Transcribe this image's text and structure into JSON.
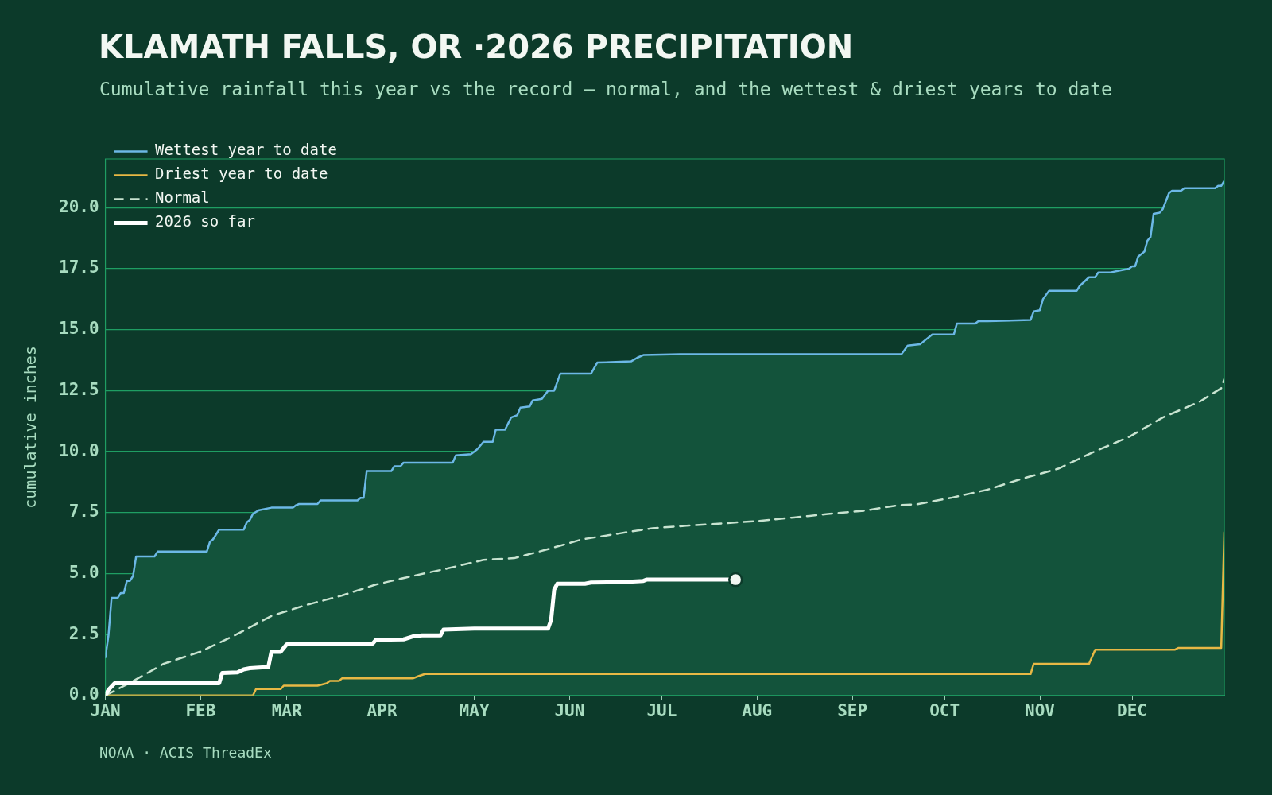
{
  "chart_data": {
    "type": "line",
    "title": "KLAMATH FALLS, OR ·2026 PRECIPITATION",
    "subtitle": "Cumulative rainfall this year vs the record — normal, and the wettest & driest years to date",
    "ylabel": "cumulative inches",
    "xlim": [
      "--01-01",
      "--12-31"
    ],
    "xticks": [
      {
        "value": "--01-01",
        "label": "JAN"
      },
      {
        "value": "--02-01",
        "label": "FEB"
      },
      {
        "value": "--03-01",
        "label": "MAR"
      },
      {
        "value": "--04-01",
        "label": "APR"
      },
      {
        "value": "--05-01",
        "label": "MAY"
      },
      {
        "value": "--06-01",
        "label": "JUN"
      },
      {
        "value": "--07-01",
        "label": "JUL"
      },
      {
        "value": "--08-01",
        "label": "AUG"
      },
      {
        "value": "--09-01",
        "label": "SEP"
      },
      {
        "value": "--10-01",
        "label": "OCT"
      },
      {
        "value": "--11-01",
        "label": "NOV"
      },
      {
        "value": "--12-01",
        "label": "DEC"
      }
    ],
    "ylim": [
      0,
      22
    ],
    "yticks": [
      {
        "value": 0,
        "label": "0.0"
      },
      {
        "value": 2.5,
        "label": "2.5"
      },
      {
        "value": 5,
        "label": "5.0"
      },
      {
        "value": 7.5,
        "label": "7.5"
      },
      {
        "value": 10,
        "label": "10.0"
      },
      {
        "value": 12.5,
        "label": "12.5"
      },
      {
        "value": 15,
        "label": "15.0"
      },
      {
        "value": 17.5,
        "label": "17.5"
      },
      {
        "value": 20,
        "label": "20.0"
      }
    ],
    "grid": "y",
    "legend": "top left",
    "series": [
      {
        "name": "Wettest year to date",
        "type": "area",
        "color": "#6cb8e6",
        "x": [
          "--01-01",
          "--01-02",
          "--01-03",
          "--01-05",
          "--01-06",
          "--01-07",
          "--01-08",
          "--01-09",
          "--01-10",
          "--01-11",
          "--01-17",
          "--01-18",
          "--02-03",
          "--02-04",
          "--02-05",
          "--02-07",
          "--02-15",
          "--02-16",
          "--02-17",
          "--02-18",
          "--02-20",
          "--02-24",
          "--03-03",
          "--03-04",
          "--03-05",
          "--03-11",
          "--03-12",
          "--03-24",
          "--03-25",
          "--03-26",
          "--03-27",
          "--04-04",
          "--04-05",
          "--04-07",
          "--04-08",
          "--04-24",
          "--04-25",
          "--04-30",
          "--05-02",
          "--05-04",
          "--05-07",
          "--05-08",
          "--05-11",
          "--05-13",
          "--05-15",
          "--05-16",
          "--05-19",
          "--05-20",
          "--05-23",
          "--05-25",
          "--05-27",
          "--05-29",
          "--06-08",
          "--06-10",
          "--06-21",
          "--06-23",
          "--06-25",
          "--07-07",
          "--09-17",
          "--09-19",
          "--09-23",
          "--09-27",
          "--10-04",
          "--10-05",
          "--10-11",
          "--10-12",
          "--10-15",
          "--10-29",
          "--10-30",
          "--11-01",
          "--11-02",
          "--11-04",
          "--11-13",
          "--11-14",
          "--11-17",
          "--11-19",
          "--11-20",
          "--11-24",
          "--11-28",
          "--11-30",
          "--12-01",
          "--12-02",
          "--12-03",
          "--12-05",
          "--12-06",
          "--12-07",
          "--12-08",
          "--12-10",
          "--12-11",
          "--12-13",
          "--12-14",
          "--12-17",
          "--12-18",
          "--12-28",
          "--12-29",
          "--12-30",
          "--12-31"
        ],
        "values": [
          1.56,
          2.46,
          4.0,
          4.0,
          4.2,
          4.2,
          4.7,
          4.7,
          4.9,
          5.7,
          5.7,
          5.9,
          5.9,
          6.3,
          6.4,
          6.8,
          6.8,
          7.1,
          7.2,
          7.45,
          7.6,
          7.7,
          7.7,
          7.8,
          7.85,
          7.85,
          8.0,
          8.0,
          8.1,
          8.1,
          9.2,
          9.2,
          9.4,
          9.4,
          9.55,
          9.55,
          9.85,
          9.9,
          10.1,
          10.4,
          10.4,
          10.9,
          10.9,
          11.4,
          11.5,
          11.8,
          11.85,
          12.1,
          12.16,
          12.5,
          12.5,
          13.2,
          13.2,
          13.65,
          13.7,
          13.85,
          13.96,
          14.0,
          14.0,
          14.35,
          14.4,
          14.8,
          14.8,
          15.25,
          15.25,
          15.35,
          15.35,
          15.4,
          15.75,
          15.8,
          16.25,
          16.6,
          16.6,
          16.8,
          17.15,
          17.15,
          17.35,
          17.35,
          17.45,
          17.5,
          17.6,
          17.6,
          18.0,
          18.2,
          18.65,
          18.8,
          19.75,
          19.8,
          19.95,
          20.6,
          20.7,
          20.7,
          20.8,
          20.8,
          20.9,
          20.9,
          21.1
        ]
      },
      {
        "name": "Driest year to date",
        "type": "line",
        "color": "#e8b845",
        "x": [
          "--01-01",
          "--02-18",
          "--02-19",
          "--02-27",
          "--02-28",
          "--03-11",
          "--03-14",
          "--03-15",
          "--03-18",
          "--03-19",
          "--04-11",
          "--04-13",
          "--04-15",
          "--10-29",
          "--10-30",
          "--11-17",
          "--11-19",
          "--12-15",
          "--12-16",
          "--12-30",
          "--12-31"
        ],
        "values": [
          0,
          0,
          0.26,
          0.26,
          0.4,
          0.4,
          0.5,
          0.6,
          0.6,
          0.7,
          0.7,
          0.8,
          0.88,
          0.88,
          1.3,
          1.3,
          1.88,
          1.88,
          1.95,
          1.95,
          6.7
        ]
      },
      {
        "name": "Normal",
        "type": "line",
        "line_style": "dashed",
        "color": "#c8e3d0",
        "x": [
          "--01-01",
          "--01-09",
          "--01-20",
          "--02-01",
          "--02-12",
          "--02-24",
          "--03-07",
          "--03-19",
          "--03-30",
          "--04-11",
          "--04-22",
          "--05-04",
          "--05-14",
          "--05-25",
          "--06-05",
          "--06-17",
          "--06-28",
          "--07-09",
          "--07-21",
          "--08-01",
          "--08-13",
          "--08-24",
          "--09-05",
          "--09-16",
          "--09-22",
          "--10-03",
          "--10-15",
          "--10-26",
          "--11-07",
          "--11-18",
          "--11-30",
          "--12-11",
          "--12-23",
          "--12-30",
          "--12-31"
        ],
        "values": [
          0,
          0.52,
          1.3,
          1.8,
          2.46,
          3.26,
          3.7,
          4.1,
          4.55,
          4.9,
          5.2,
          5.56,
          5.63,
          6.0,
          6.4,
          6.64,
          6.86,
          6.96,
          7.06,
          7.15,
          7.3,
          7.44,
          7.58,
          7.8,
          7.84,
          8.1,
          8.44,
          8.88,
          9.3,
          9.96,
          10.6,
          11.4,
          12.05,
          12.6,
          12.98
        ]
      },
      {
        "name": "2026 so far",
        "type": "line",
        "color": "#ffffff",
        "x": [
          "--01-01",
          "--01-02",
          "--01-04",
          "--02-07",
          "--02-08",
          "--02-13",
          "--02-15",
          "--02-17",
          "--02-23",
          "--02-24",
          "--02-27",
          "--03-01",
          "--03-29",
          "--03-30",
          "--04-08",
          "--04-11",
          "--04-14",
          "--04-20",
          "--04-21",
          "--05-01",
          "--05-25",
          "--05-26",
          "--05-27",
          "--05-28",
          "--06-06",
          "--06-08",
          "--06-18",
          "--06-25",
          "--06-26",
          "--07-25"
        ],
        "values": [
          0,
          0.23,
          0.5,
          0.5,
          0.92,
          0.95,
          1.07,
          1.12,
          1.17,
          1.79,
          1.79,
          2.1,
          2.13,
          2.28,
          2.3,
          2.42,
          2.46,
          2.46,
          2.7,
          2.74,
          2.74,
          3.1,
          4.34,
          4.58,
          4.58,
          4.63,
          4.65,
          4.7,
          4.75,
          4.75
        ]
      },
      {
        "type": "scatter",
        "marker": "circle",
        "color": "#f2f7f2",
        "x": [
          "--07-25"
        ],
        "values": [
          4.75
        ]
      }
    ],
    "annotations": [
      "NOAA · ACIS ThreadEx"
    ]
  }
}
